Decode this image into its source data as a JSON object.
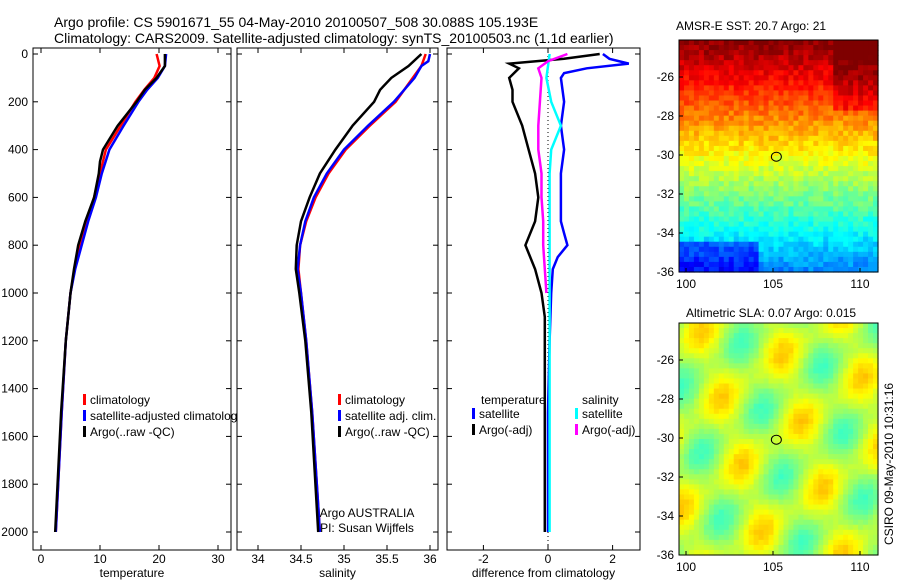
{
  "title_line1": "Argo profile: CS 5901671_55 04-May-2010 20100507_508 30.088S 105.193E",
  "title_line2": "Climatology: CARS2009. Satellite-adjusted climatology: synTS_20100503.nc (1.1d earlier)",
  "side_stamp": "CSIRO 09-May-2010 10:31:16",
  "colors": {
    "climatology": "#ff0000",
    "satellite": "#0000ff",
    "argo": "#000000",
    "sal_satellite": "#00ffff",
    "sal_argo": "#ff00ff"
  },
  "chart_data": [
    {
      "type": "line",
      "xlabel": "temperature",
      "ylabel": "",
      "xlim": [
        -2,
        32
      ],
      "ylim": [
        2050,
        -30
      ],
      "xticks": [
        "0",
        "10",
        "20",
        "30"
      ],
      "yticks": [
        "0",
        "200",
        "400",
        "600",
        "800",
        "1000",
        "1200",
        "1400",
        "1600",
        "1800",
        "2000"
      ],
      "legend": [
        "climatology",
        "satellite-adjusted climatolog",
        "Argo(..raw -QC)"
      ],
      "series": [
        {
          "name": "climatology",
          "color": "#ff0000",
          "depth": [
            0,
            50,
            100,
            150,
            200,
            300,
            400,
            500,
            600,
            700,
            800,
            900,
            1000,
            1200,
            1500,
            2000
          ],
          "values": [
            19.6,
            20.1,
            19.2,
            17.5,
            16,
            13.5,
            11,
            10,
            9,
            7.8,
            6.6,
            5.7,
            5,
            4.2,
            3.5,
            2.5
          ]
        },
        {
          "name": "satellite-adjusted climatology",
          "color": "#0000ff",
          "depth": [
            0,
            50,
            100,
            150,
            200,
            300,
            400,
            500,
            600,
            700,
            800,
            900,
            1000,
            1200,
            1500,
            2000
          ],
          "values": [
            21.2,
            21,
            19.8,
            18,
            16.5,
            14,
            11.6,
            10.3,
            9.3,
            8,
            6.9,
            5.8,
            5,
            4.2,
            3.5,
            2.5
          ]
        },
        {
          "name": "Argo(..raw -QC)",
          "color": "#000000",
          "depth": [
            0,
            50,
            100,
            150,
            200,
            300,
            400,
            450,
            500,
            600,
            700,
            800,
            900,
            1000,
            1200,
            1500,
            2000
          ],
          "values": [
            21,
            21,
            19.6,
            17.6,
            16.2,
            13,
            10.5,
            10,
            9.8,
            9,
            7.5,
            6.3,
            5.6,
            5,
            4.2,
            3.4,
            2.4
          ]
        }
      ]
    },
    {
      "type": "line",
      "xlabel": "salinity",
      "ylabel": "",
      "xlim": [
        33.75,
        36.05
      ],
      "ylim": [
        2050,
        -30
      ],
      "xticks": [
        "34",
        "34.5",
        "35",
        "35.5",
        "36"
      ],
      "legend": [
        "climatology",
        "satellite adj. clim.",
        "Argo(..raw -QC)"
      ],
      "annotation": [
        "Argo AUSTRALIA",
        "PI: Susan Wijffels"
      ],
      "series": [
        {
          "name": "climatology",
          "color": "#ff0000",
          "depth": [
            0,
            50,
            100,
            200,
            300,
            400,
            500,
            600,
            700,
            800,
            900,
            1000,
            1200,
            1500,
            2000
          ],
          "values": [
            35.95,
            35.9,
            35.8,
            35.6,
            35.3,
            35.02,
            34.82,
            34.67,
            34.56,
            34.49,
            34.47,
            34.5,
            34.56,
            34.63,
            34.72
          ]
        },
        {
          "name": "satellite adj. clim.",
          "color": "#0000ff",
          "depth": [
            0,
            30,
            50,
            100,
            200,
            300,
            400,
            500,
            600,
            700,
            800,
            900,
            1000,
            1200,
            1500,
            2000
          ],
          "values": [
            36,
            35.98,
            35.9,
            35.82,
            35.58,
            35.28,
            35,
            34.8,
            34.65,
            34.55,
            34.49,
            34.46,
            34.5,
            34.56,
            34.63,
            34.72
          ]
        },
        {
          "name": "Argo(..raw -QC)",
          "color": "#000000",
          "depth": [
            0,
            50,
            100,
            150,
            200,
            300,
            400,
            500,
            600,
            700,
            800,
            900,
            1000,
            1200,
            1500,
            2000
          ],
          "values": [
            35.9,
            35.75,
            35.55,
            35.42,
            35.35,
            35.1,
            34.9,
            34.72,
            34.6,
            34.5,
            34.45,
            34.44,
            34.48,
            34.55,
            34.62,
            34.7
          ]
        }
      ]
    },
    {
      "type": "line",
      "xlabel": "difference from climatology",
      "ylabel": "",
      "xlim": [
        -3.1,
        2.9
      ],
      "ylim": [
        2050,
        -30
      ],
      "xticks": [
        "-2",
        "0",
        "2"
      ],
      "legend_headers": [
        "temperature",
        "salinity"
      ],
      "legend": [
        "satellite",
        "Argo(-adj)",
        "satellite",
        "Argo(-adj)"
      ],
      "series": [
        {
          "name": "temperature satellite",
          "color": "#0000ff",
          "depth": [
            0,
            20,
            40,
            60,
            80,
            100,
            200,
            300,
            400,
            500,
            600,
            700,
            750,
            800,
            850,
            900,
            1000,
            1200,
            1500,
            2000
          ],
          "values": [
            1.7,
            1.9,
            2.5,
            1.2,
            0.5,
            0.4,
            0.5,
            0.4,
            0.5,
            0.4,
            0.4,
            0.4,
            0.5,
            0.6,
            0.3,
            0.15,
            0.1,
            0.05,
            0,
            0
          ]
        },
        {
          "name": "temperature Argo(-adj)",
          "color": "#000000",
          "depth": [
            0,
            20,
            40,
            60,
            100,
            150,
            200,
            300,
            400,
            500,
            600,
            700,
            800,
            900,
            1000,
            1100,
            1200,
            1500,
            2000
          ],
          "values": [
            1.6,
            0.5,
            -1.2,
            -0.9,
            -1.2,
            -1.1,
            -1.1,
            -0.8,
            -0.6,
            -0.4,
            -0.3,
            -0.4,
            -0.7,
            -0.4,
            -0.2,
            -0.1,
            -0.1,
            -0.1,
            -0.1
          ]
        },
        {
          "name": "salinity satellite",
          "color": "#00ffff",
          "depth": [
            0,
            50,
            100,
            200,
            300,
            400,
            500,
            700,
            1000,
            1500,
            2000
          ],
          "values": [
            0.05,
            0,
            -0.05,
            0.1,
            0.4,
            0.1,
            0.05,
            0.05,
            0.05,
            0.05,
            0.05
          ]
        },
        {
          "name": "salinity Argo(-adj)",
          "color": "#ff00ff",
          "depth": [
            0,
            30,
            60,
            100,
            200,
            300,
            400,
            500,
            600,
            700,
            800,
            900,
            1000
          ],
          "values": [
            0.6,
            0,
            -0.3,
            -0.2,
            -0.25,
            -0.3,
            -0.3,
            -0.2,
            -0.2,
            -0.15,
            -0.15,
            -0.1,
            -0.05
          ]
        }
      ]
    },
    {
      "type": "heatmap",
      "title": "AMSR-E SST: 20.7 Argo: 21",
      "xticks": [
        "100",
        "105",
        "110"
      ],
      "yticks": [
        "-26",
        "-28",
        "-30",
        "-32",
        "-34",
        "-36"
      ],
      "marker": [
        105.193,
        -30.088
      ]
    },
    {
      "type": "heatmap",
      "title": "Altimetric SLA: 0.07 Argo: 0.015",
      "xticks": [
        "100",
        "105",
        "110"
      ],
      "yticks": [
        "-26",
        "-28",
        "-30",
        "-32",
        "-34",
        "-36"
      ],
      "marker": [
        105.193,
        -30.088
      ]
    }
  ]
}
